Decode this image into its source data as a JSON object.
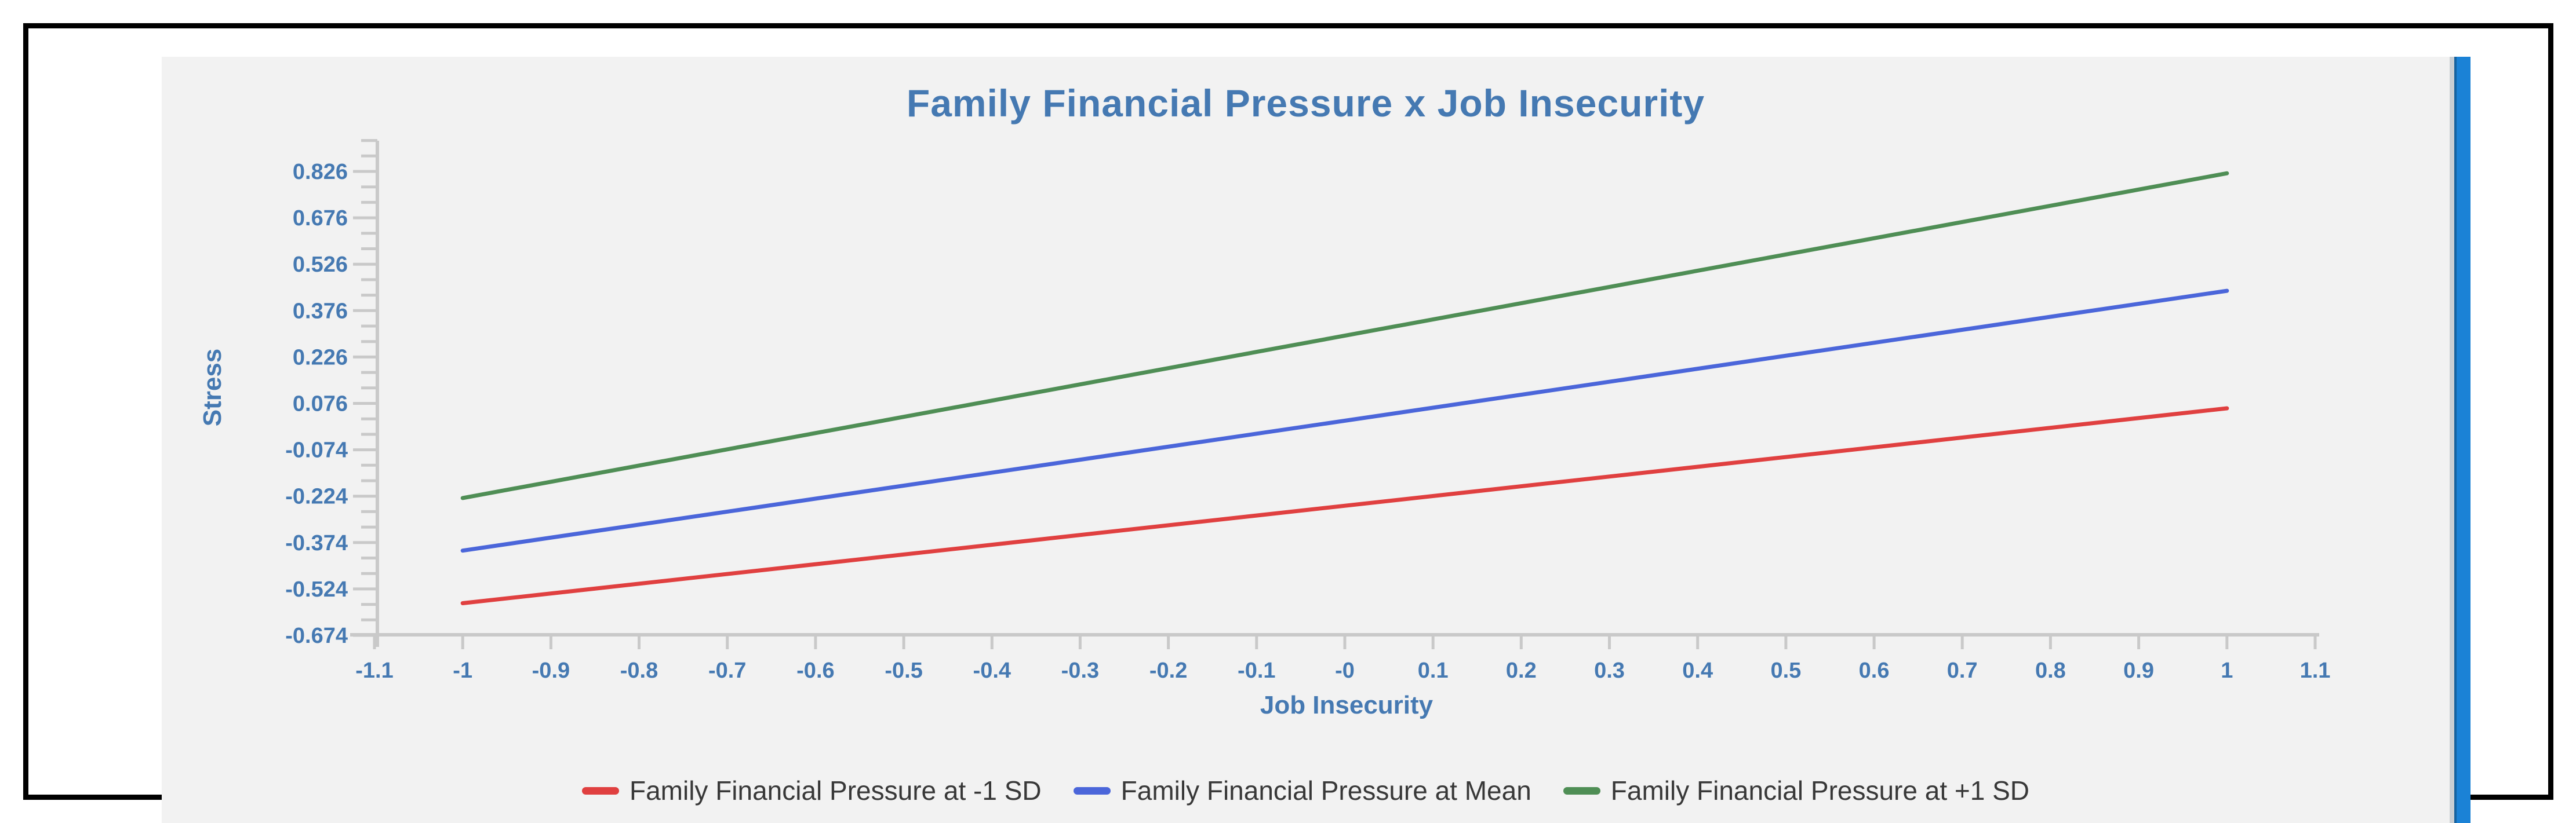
{
  "colors": {
    "page_background": "#ffffff",
    "frame_border": "#000000",
    "panel_background": "#f2f2f2",
    "axis": "#c9c9c9",
    "axis_text": "#4579b2",
    "legend_text": "#383838",
    "scrollbar_track": "#c9ced3",
    "scrollbar_thumb": "#1b82d6"
  },
  "scrollbar": {
    "orientation": "vertical",
    "thumb_color": "#1b82d6"
  },
  "chart_data": {
    "type": "line",
    "title": "Family Financial Pressure x Job Insecurity",
    "xlabel": "Job Insecurity",
    "ylabel": "Stress",
    "xlim": [
      -1.1,
      1.1
    ],
    "ylim": [
      -0.674,
      0.926
    ],
    "x_tick_labels": [
      "-1.1",
      "-1",
      "-0.9",
      "-0.8",
      "-0.7",
      "-0.6",
      "-0.5",
      "-0.4",
      "-0.3",
      "-0.2",
      "-0.1",
      "-0",
      "0.1",
      "0.2",
      "0.3",
      "0.4",
      "0.5",
      "0.6",
      "0.7",
      "0.8",
      "0.9",
      "1",
      "1.1"
    ],
    "y_tick_labels": [
      "0.826",
      "0.676",
      "0.526",
      "0.376",
      "0.226",
      "0.076",
      "-0.074",
      "-0.224",
      "-0.374",
      "-0.524",
      "-0.674"
    ],
    "y_major_tick_step": 0.15,
    "y_minor_tick_step": 0.05,
    "grid": false,
    "legend_position": "bottom",
    "series": [
      {
        "name": "Family Financial Pressure at -1 SD",
        "color": "#e04040",
        "x": [
          -1,
          1
        ],
        "y": [
          -0.57,
          0.06
        ]
      },
      {
        "name": "Family Financial Pressure at Mean",
        "color": "#4b66da",
        "x": [
          -1,
          1
        ],
        "y": [
          -0.4,
          0.44
        ]
      },
      {
        "name": "Family Financial Pressure at +1 SD",
        "color": "#4f8e55",
        "x": [
          -1,
          1
        ],
        "y": [
          -0.23,
          0.82
        ]
      }
    ]
  }
}
